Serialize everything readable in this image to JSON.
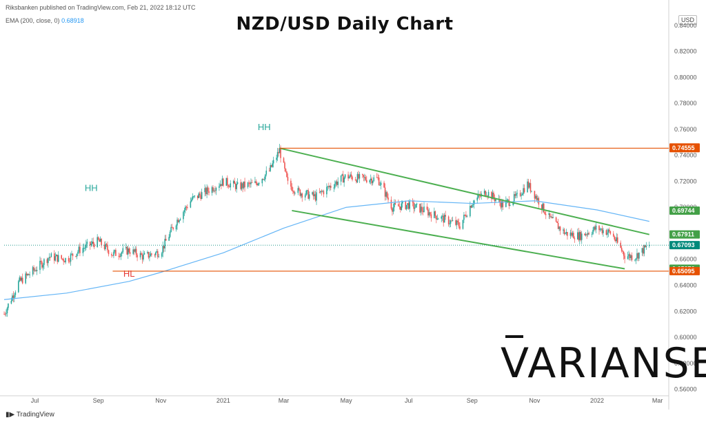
{
  "header": {
    "publisher_text": "Riksbanken published on TradingView.com, Feb 21, 2022 18:12 UTC",
    "ema_label": "EMA (200, close, 0)",
    "ema_value": "0.68918",
    "currency": "USD"
  },
  "footer": {
    "brand": "TradingView"
  },
  "watermark": {
    "text": "VARIANSE"
  },
  "colors": {
    "bull": "#26a69a",
    "bear": "#ef5350",
    "ema": "#64b5f6",
    "channel": "#4caf50",
    "level": "#e65100",
    "last_price": "#00897b",
    "ema_tag": "#43a047",
    "hl_text": "#e53935",
    "hh_text": "#26a69a"
  },
  "chart_data": {
    "type": "line",
    "title": "NZD/USD Daily Chart",
    "ylim": [
      0.555,
      0.85
    ],
    "y_ticks": [
      "0.84000",
      "0.82000",
      "0.80000",
      "0.78000",
      "0.76000",
      "0.74000",
      "0.72000",
      "0.70000",
      "0.68000",
      "0.66000",
      "0.64000",
      "0.62000",
      "0.60000",
      "0.58000",
      "0.56000"
    ],
    "x_ticks": [
      "Jul",
      "Sep",
      "Nov",
      "2021",
      "Mar",
      "May",
      "Jul",
      "Sep",
      "Nov",
      "2022",
      "Mar"
    ],
    "grid": false,
    "series": [
      {
        "type": "candlestick",
        "x": [
          "2020-06-01",
          "2020-06-15",
          "2020-07-01",
          "2020-07-15",
          "2020-08-01",
          "2020-08-15",
          "2020-09-01",
          "2020-09-15",
          "2020-10-01",
          "2020-10-15",
          "2020-11-01",
          "2020-11-15",
          "2020-12-01",
          "2020-12-15",
          "2021-01-01",
          "2021-01-15",
          "2021-02-01",
          "2021-02-15",
          "2021-02-25",
          "2021-03-05",
          "2021-03-15",
          "2021-04-01",
          "2021-04-15",
          "2021-05-01",
          "2021-05-15",
          "2021-06-01",
          "2021-06-15",
          "2021-07-01",
          "2021-07-15",
          "2021-08-01",
          "2021-08-20",
          "2021-09-01",
          "2021-09-15",
          "2021-10-01",
          "2021-10-15",
          "2021-10-25",
          "2021-11-01",
          "2021-11-15",
          "2021-12-01",
          "2021-12-15",
          "2022-01-01",
          "2022-01-15",
          "2022-01-28",
          "2022-02-07",
          "2022-02-21"
        ],
        "values": [
          0.618,
          0.642,
          0.652,
          0.662,
          0.66,
          0.668,
          0.674,
          0.664,
          0.667,
          0.662,
          0.666,
          0.688,
          0.706,
          0.712,
          0.72,
          0.716,
          0.718,
          0.728,
          0.744,
          0.718,
          0.712,
          0.708,
          0.716,
          0.724,
          0.722,
          0.722,
          0.7,
          0.702,
          0.698,
          0.692,
          0.686,
          0.704,
          0.712,
          0.702,
          0.708,
          0.718,
          0.71,
          0.692,
          0.68,
          0.678,
          0.684,
          0.68,
          0.663,
          0.662,
          0.6709
        ]
      },
      {
        "name": "EMA (200, close, 0)",
        "x": [
          "2020-06-01",
          "2020-08-01",
          "2020-10-01",
          "2020-11-01",
          "2021-01-01",
          "2021-03-01",
          "2021-05-01",
          "2021-07-01",
          "2021-09-01",
          "2021-11-01",
          "2022-01-01",
          "2022-02-21"
        ],
        "values": [
          0.629,
          0.634,
          0.643,
          0.65,
          0.665,
          0.684,
          0.7,
          0.705,
          0.703,
          0.705,
          0.698,
          0.6892
        ]
      }
    ],
    "channel_lines": [
      {
        "x": [
          "2021-02-25",
          "2022-02-21"
        ],
        "values": [
          0.7455,
          0.6791
        ]
      },
      {
        "x": [
          "2021-03-09",
          "2022-01-28"
        ],
        "values": [
          0.6975,
          0.6527
        ]
      }
    ],
    "horizontal_levels": [
      0.7455,
      0.6509
    ],
    "annotations": [
      {
        "text": "HH",
        "x": "2020-08-25",
        "y": 0.7125
      },
      {
        "text": "HL",
        "x": "2020-10-01",
        "y": 0.6465
      },
      {
        "text": "HH",
        "x": "2021-02-10",
        "y": 0.7595
      }
    ],
    "price_tags": [
      "0.74607",
      "0.74555",
      "0.69744",
      "0.67911",
      "0.67093",
      "0.65276",
      "0.65095"
    ]
  }
}
